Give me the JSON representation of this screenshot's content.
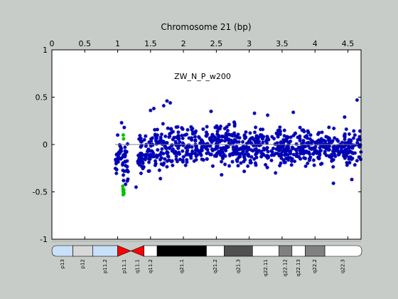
{
  "chart_data": {
    "type": "scatter",
    "title": "ZW_N_P_w200",
    "xlabel": "Chromosome 21 (bp)",
    "ylabel": "",
    "xlim": [
      0,
      4.7
    ],
    "ylim": [
      -1,
      1
    ],
    "x_ticks": [
      "0",
      "0.5",
      "1",
      "1.5",
      "2",
      "2.5",
      "3",
      "3.5",
      "4",
      "4.5"
    ],
    "y_ticks": [
      "1",
      "0.5",
      "0",
      "-0.5",
      "-1"
    ],
    "x_axis_position": "top",
    "grid": false,
    "legend": "none",
    "reference_line_y": 0,
    "series": [
      {
        "color": "#0000b4",
        "marker": "asterisk",
        "segments": [
          {
            "x_start": 0.96,
            "x_end": 1.02,
            "y_center": -0.18,
            "y_spread": 0.26
          },
          {
            "x_start": 1.02,
            "x_end": 1.06,
            "y_center": -0.05,
            "y_spread": 0.12
          },
          {
            "x_start": 1.06,
            "x_end": 1.16,
            "y_center": -0.18,
            "y_spread": 0.3
          },
          {
            "x_start": 1.3,
            "x_end": 1.55,
            "y_center": -0.08,
            "y_spread": 0.3
          },
          {
            "x_start": 1.55,
            "x_end": 2.8,
            "y_center": -0.01,
            "y_spread": 0.32
          },
          {
            "x_start": 2.8,
            "x_end": 4.0,
            "y_center": -0.03,
            "y_spread": 0.28
          },
          {
            "x_start": 4.0,
            "x_end": 4.7,
            "y_center": -0.04,
            "y_spread": 0.24
          }
        ],
        "notable_points": [
          {
            "x": 1.75,
            "y": 0.46
          },
          {
            "x": 1.8,
            "y": 0.44
          },
          {
            "x": 1.7,
            "y": 0.41
          },
          {
            "x": 2.42,
            "y": 0.35
          },
          {
            "x": 1.55,
            "y": 0.38
          },
          {
            "x": 1.5,
            "y": 0.36
          },
          {
            "x": 4.64,
            "y": 0.47
          },
          {
            "x": 3.67,
            "y": 0.34
          },
          {
            "x": 3.08,
            "y": 0.33
          },
          {
            "x": 3.28,
            "y": 0.31
          },
          {
            "x": 4.45,
            "y": 0.29
          },
          {
            "x": 1.06,
            "y": 0.23
          },
          {
            "x": 1.1,
            "y": 0.18
          },
          {
            "x": 1.0,
            "y": 0.1
          },
          {
            "x": 1.28,
            "y": -0.45
          },
          {
            "x": 4.28,
            "y": -0.41
          },
          {
            "x": 4.56,
            "y": -0.37
          },
          {
            "x": 1.65,
            "y": -0.36
          },
          {
            "x": 2.58,
            "y": -0.32
          },
          {
            "x": 3.4,
            "y": -0.3
          },
          {
            "x": 1.12,
            "y": -0.42
          },
          {
            "x": 1.09,
            "y": -0.38
          }
        ]
      },
      {
        "color": "#00c000",
        "marker": "asterisk",
        "points": [
          {
            "x": 1.085,
            "y": 0.1
          },
          {
            "x": 1.09,
            "y": 0.06
          },
          {
            "x": 1.078,
            "y": -0.44
          },
          {
            "x": 1.082,
            "y": -0.47
          },
          {
            "x": 1.086,
            "y": -0.49
          },
          {
            "x": 1.088,
            "y": -0.5
          },
          {
            "x": 1.091,
            "y": -0.51
          },
          {
            "x": 1.094,
            "y": -0.52
          },
          {
            "x": 1.084,
            "y": -0.53
          },
          {
            "x": 1.093,
            "y": -0.48
          }
        ]
      }
    ]
  },
  "ideogram": {
    "bands": [
      {
        "label": "p13",
        "start": 0.0,
        "end": 0.32,
        "color": "#c8e0f8"
      },
      {
        "label": "p12",
        "start": 0.32,
        "end": 0.62,
        "color": "#d8d8d8"
      },
      {
        "label": "p11.2",
        "start": 0.62,
        "end": 1.0,
        "color": "#c8e0f8"
      },
      {
        "label": "p11.1",
        "start": 1.0,
        "end": 1.2,
        "color": "#ff0000"
      },
      {
        "label": "q11.1",
        "start": 1.2,
        "end": 1.4,
        "color": "#ff0000"
      },
      {
        "label": "q11.2",
        "start": 1.4,
        "end": 1.6,
        "color": "#ffffff"
      },
      {
        "label": "q21.1",
        "start": 1.6,
        "end": 2.35,
        "color": "#000000"
      },
      {
        "label": "q21.2",
        "start": 2.35,
        "end": 2.62,
        "color": "#ffffff"
      },
      {
        "label": "q21.3",
        "start": 2.62,
        "end": 3.05,
        "color": "#505050"
      },
      {
        "label": "q22.11",
        "start": 3.05,
        "end": 3.45,
        "color": "#ffffff"
      },
      {
        "label": "q22.12",
        "start": 3.45,
        "end": 3.65,
        "color": "#808080"
      },
      {
        "label": "q22.13",
        "start": 3.65,
        "end": 3.85,
        "color": "#ffffff"
      },
      {
        "label": "q22.2",
        "start": 3.85,
        "end": 4.15,
        "color": "#808080"
      },
      {
        "label": "q22.3",
        "start": 4.15,
        "end": 4.75,
        "color": "#ffffff"
      }
    ]
  }
}
